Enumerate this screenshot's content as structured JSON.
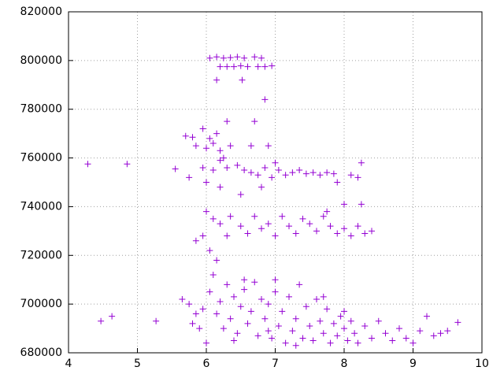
{
  "chart_data": {
    "type": "scatter",
    "color": "#9400d3",
    "marker": "+",
    "grid": true,
    "xlim": [
      4,
      10
    ],
    "xticks": [
      4,
      5,
      6,
      7,
      8,
      9,
      10
    ],
    "ylim": [
      680000,
      820000
    ],
    "yticks": [
      680000,
      700000,
      720000,
      740000,
      760000,
      780000,
      800000,
      820000
    ],
    "x": [
      6.05,
      6.15,
      6.25,
      6.35,
      6.45,
      6.55,
      6.7,
      6.8,
      6.2,
      6.3,
      6.4,
      6.5,
      6.6,
      6.75,
      6.85,
      6.95,
      6.15,
      6.52,
      6.85,
      6.7,
      4.28,
      4.85,
      4.47,
      4.63,
      5.27,
      9.65,
      9.4,
      8.25,
      8.0,
      8.25,
      5.7,
      5.8,
      5.95,
      6.05,
      6.15,
      6.3,
      6.0,
      6.2,
      6.35,
      5.85,
      6.1,
      6.65,
      6.9,
      6.25,
      5.55,
      5.75,
      5.95,
      6.1,
      6.2,
      6.3,
      6.45,
      6.55,
      6.65,
      6.75,
      6.85,
      6.95,
      7.05,
      7.15,
      7.25,
      7.35,
      7.45,
      7.55,
      7.65,
      7.75,
      7.85,
      7.9,
      6.0,
      6.2,
      6.5,
      6.8,
      7.0,
      8.1,
      8.2,
      6.0,
      5.95,
      5.85,
      6.1,
      6.2,
      6.3,
      6.35,
      6.5,
      6.6,
      6.7,
      6.8,
      6.9,
      7.0,
      7.1,
      7.2,
      7.3,
      7.4,
      7.5,
      7.6,
      7.7,
      7.8,
      7.9,
      8.0,
      8.1,
      8.2,
      8.3,
      8.4,
      7.75,
      6.15,
      6.05,
      5.65,
      5.8,
      5.9,
      5.95,
      6.05,
      6.1,
      6.15,
      6.2,
      6.25,
      6.3,
      6.35,
      6.4,
      6.45,
      6.5,
      6.55,
      6.6,
      6.65,
      6.7,
      6.75,
      6.8,
      6.85,
      6.9,
      6.95,
      7.0,
      7.05,
      7.1,
      7.15,
      7.2,
      7.25,
      7.3,
      7.35,
      7.4,
      7.45,
      7.5,
      7.55,
      7.6,
      7.65,
      7.7,
      7.75,
      7.8,
      7.85,
      7.9,
      7.95,
      8.0,
      8.05,
      8.1,
      8.15,
      8.2,
      8.3,
      8.4,
      8.5,
      8.6,
      8.7,
      8.8,
      8.9,
      9.0,
      9.1,
      9.2,
      9.3,
      9.5,
      6.0,
      6.4,
      6.9,
      7.3,
      7.7,
      8.0,
      5.75,
      5.85,
      6.55,
      7.0
    ],
    "values": [
      801000,
      801500,
      801000,
      801200,
      801500,
      801000,
      801500,
      801000,
      797500,
      797500,
      797500,
      797800,
      797500,
      797500,
      797500,
      797800,
      792000,
      792000,
      784000,
      775000,
      757500,
      757500,
      693000,
      695000,
      693000,
      692500,
      688000,
      741000,
      741000,
      758000,
      769000,
      768500,
      772000,
      768000,
      770000,
      775000,
      764000,
      763000,
      765000,
      765000,
      766000,
      765000,
      765000,
      760000,
      755500,
      752000,
      756000,
      755000,
      759000,
      756000,
      757000,
      755000,
      754000,
      753000,
      756000,
      752000,
      755000,
      753000,
      754000,
      755000,
      753500,
      754000,
      753000,
      754000,
      753500,
      750000,
      750000,
      748000,
      745000,
      748000,
      758000,
      753000,
      752000,
      738000,
      728000,
      726000,
      735000,
      733000,
      728000,
      736000,
      732000,
      729000,
      736000,
      731000,
      733000,
      728000,
      736000,
      732000,
      729000,
      735000,
      733000,
      730000,
      736000,
      732000,
      729000,
      731000,
      728000,
      732000,
      729000,
      730000,
      738000,
      718000,
      722000,
      702000,
      692000,
      690000,
      698000,
      705000,
      712000,
      696000,
      701000,
      690000,
      708000,
      694000,
      703000,
      688000,
      699000,
      706000,
      692000,
      697000,
      709000,
      687000,
      702000,
      694000,
      700000,
      686000,
      705000,
      691000,
      697000,
      684000,
      703000,
      689000,
      694000,
      708000,
      686000,
      699000,
      691000,
      685000,
      702000,
      693000,
      688000,
      698000,
      684000,
      692000,
      687000,
      695000,
      690000,
      685000,
      693000,
      688000,
      684000,
      691000,
      686000,
      693000,
      688000,
      685000,
      690000,
      686000,
      684000,
      689000,
      695000,
      687000,
      689000,
      684000,
      685000,
      689000,
      683000,
      703000,
      697000,
      700000,
      696000,
      710000,
      710000
    ]
  }
}
